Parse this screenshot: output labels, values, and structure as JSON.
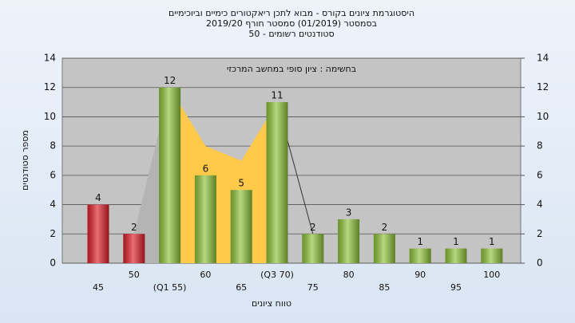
{
  "chart_data": {
    "type": "bar",
    "title": [
      "היסטוגרמת ציונים בקורס - מבוא לתכן ריאקטורים כימיים וביוכימיים",
      "בסמסטר (01/2019)  סמסטר חורף 2019/20",
      "סטודנטים רשומים - 50"
    ],
    "annotation": "בחשימה : ציון סופי במחשב המרכזי",
    "x_label": "טווח ציונים",
    "y_label": "מספר סטודנטים",
    "categories": [
      "45",
      "50",
      "(Q1 55)",
      "60",
      "65",
      "(Q3 70)",
      "75",
      "80",
      "85",
      "90",
      "95",
      "100"
    ],
    "values": [
      4,
      2,
      12,
      6,
      5,
      11,
      2,
      3,
      2,
      1,
      1,
      1
    ],
    "colors": [
      "#e0202a",
      "#e0202a",
      "#8fc43a",
      "#8fc43a",
      "#8fc43a",
      "#8fc43a",
      "#8fc43a",
      "#8fc43a",
      "#8fc43a",
      "#8fc43a",
      "#8fc43a",
      "#8fc43a"
    ],
    "area": {
      "values": [
        null,
        2,
        12,
        8,
        7,
        11,
        2,
        null,
        null,
        null,
        null,
        null
      ],
      "colors": [
        "#b4b4b4",
        "#ffc94a",
        "#333333"
      ]
    },
    "ylim": [
      0,
      14
    ],
    "yticks": [
      0,
      2,
      4,
      6,
      8,
      10,
      12,
      14
    ],
    "y2lim": [
      0,
      14
    ],
    "y2ticks": [
      0,
      2,
      4,
      6,
      8,
      10,
      12,
      14
    ],
    "grid": true
  }
}
